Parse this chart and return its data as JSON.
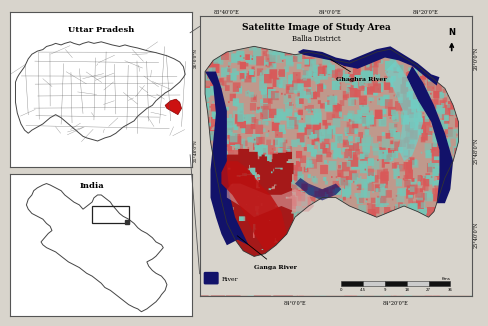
{
  "title": "Satelitte Image of Study Area",
  "subtitle": "Ballia District",
  "up_label": "Uttar Pradesh",
  "india_label": "India",
  "ghaghra_label": "Ghaghra River",
  "ganga_label": "Ganga River",
  "river_legend": "River",
  "bg_color": "#d8d4cc",
  "left_panel_bg": "#ffffff",
  "right_panel_bg": "#ffffff",
  "border_color": "#555555",
  "scale_ticks": [
    "0",
    "4.5",
    "9",
    "18",
    "27",
    "36"
  ],
  "x_ticks_top": [
    "83°40'0\"E",
    "84°0'0\"E",
    "84°20'0\"E"
  ],
  "x_ticks_bot": [
    "84°0'0\"E",
    "84°20'0\"E"
  ],
  "y_ticks_right": [
    "26°0'0\"N",
    "25°48'0\"N",
    "25°40'0\"N"
  ],
  "north_label": "N",
  "km_label": "Kms"
}
